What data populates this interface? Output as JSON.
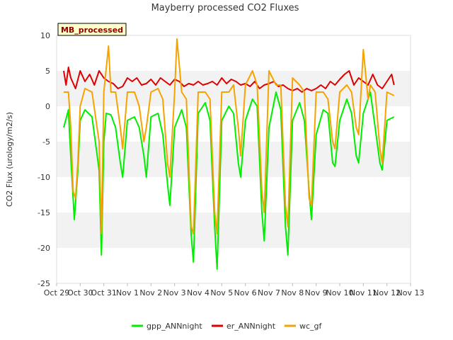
{
  "chart_data": {
    "type": "line",
    "title": "Mayberry processed CO2 Fluxes",
    "badge": "MB_processed",
    "xlabel": "",
    "ylabel": "CO2 Flux (urology/m2/s)",
    "ylim": [
      -25,
      10
    ],
    "yticks": [
      -25,
      -20,
      -15,
      -10,
      -5,
      0,
      5,
      10
    ],
    "xlim": [
      0,
      15
    ],
    "xticks": [
      0,
      1,
      2,
      3,
      4,
      5,
      6,
      7,
      8,
      9,
      10,
      11,
      12,
      13,
      14,
      15
    ],
    "xtick_labels": [
      "Oct 29",
      "Oct 30",
      "Oct 31",
      "Nov 1",
      "Nov 2",
      "Nov 3",
      "Nov 4",
      "Nov 5",
      "Nov 6",
      "Nov 7",
      "Nov 8",
      "Nov 9",
      "Nov 10",
      "Nov 11",
      "Nov 12",
      "Nov 13"
    ],
    "grid": "horizontal-bands",
    "legend_position": "bottom",
    "series": [
      {
        "name": "gpp_ANNnight",
        "color": "#00ee00",
        "x": [
          0.3,
          0.5,
          0.55,
          0.7,
          0.75,
          0.9,
          1.0,
          1.2,
          1.5,
          1.8,
          1.9,
          2.0,
          2.1,
          2.3,
          2.5,
          2.7,
          2.8,
          3.0,
          3.3,
          3.5,
          3.7,
          3.8,
          4.0,
          4.3,
          4.5,
          4.7,
          4.8,
          5.0,
          5.3,
          5.5,
          5.7,
          5.8,
          6.0,
          6.3,
          6.5,
          6.7,
          6.8,
          7.0,
          7.3,
          7.5,
          7.7,
          7.8,
          8.0,
          8.3,
          8.5,
          8.7,
          8.8,
          9.0,
          9.3,
          9.5,
          9.7,
          9.8,
          10.0,
          10.3,
          10.5,
          10.7,
          10.8,
          11.0,
          11.3,
          11.5,
          11.7,
          11.8,
          12.0,
          12.3,
          12.5,
          12.7,
          12.8,
          13.0,
          13.3,
          13.5,
          13.7,
          13.8,
          14.0,
          14.3
        ],
        "values": [
          -3,
          -0.5,
          -4,
          -13,
          -16,
          -9,
          -2,
          -0.5,
          -1.5,
          -9,
          -21,
          -5,
          -1,
          -1.2,
          -3,
          -8,
          -10,
          -2,
          -1.5,
          -3,
          -7,
          -10,
          -1.5,
          -1,
          -4,
          -11,
          -14,
          -3,
          -0.5,
          -3,
          -18,
          -22,
          -1,
          0.5,
          -2,
          -17,
          -23,
          -2,
          0,
          -1,
          -8,
          -10,
          -2,
          1,
          0,
          -15,
          -19,
          -3,
          2,
          -0.5,
          -17,
          -21,
          -2,
          0.5,
          -2,
          -12,
          -16,
          -4,
          -0.5,
          -1,
          -8,
          -8.5,
          -2,
          1,
          -1,
          -7,
          -8,
          -1,
          2,
          -3,
          -8,
          -9,
          -2,
          -1.5
        ]
      },
      {
        "name": "er_ANNnight",
        "color": "#dd0000",
        "x": [
          0.3,
          0.4,
          0.5,
          0.6,
          0.8,
          1.0,
          1.2,
          1.4,
          1.6,
          1.8,
          2.0,
          2.2,
          2.4,
          2.6,
          2.8,
          3.0,
          3.2,
          3.4,
          3.6,
          3.8,
          4.0,
          4.2,
          4.4,
          4.6,
          4.8,
          5.0,
          5.2,
          5.4,
          5.6,
          5.8,
          6.0,
          6.2,
          6.4,
          6.6,
          6.8,
          7.0,
          7.2,
          7.4,
          7.6,
          7.8,
          8.0,
          8.2,
          8.4,
          8.6,
          8.8,
          9.0,
          9.2,
          9.4,
          9.6,
          9.8,
          10.0,
          10.2,
          10.4,
          10.6,
          10.8,
          11.0,
          11.2,
          11.4,
          11.6,
          11.8,
          12.0,
          12.2,
          12.4,
          12.6,
          12.8,
          13.0,
          13.2,
          13.4,
          13.6,
          13.8,
          14.0,
          14.2,
          14.3
        ],
        "values": [
          5,
          3,
          5.5,
          4,
          2.5,
          5,
          3.5,
          4.5,
          3,
          5,
          4,
          3.5,
          3.2,
          2.5,
          2.8,
          4,
          3.5,
          4,
          3,
          3.2,
          3.8,
          3,
          4,
          3.5,
          3,
          3.8,
          3.5,
          2.8,
          3.2,
          3,
          3.5,
          3,
          3.2,
          3.5,
          3,
          4,
          3.2,
          3.8,
          3.5,
          3,
          3.2,
          2.8,
          3.5,
          2.5,
          3,
          3.2,
          3.5,
          2.8,
          3,
          2.5,
          2.2,
          2.5,
          2,
          2.5,
          2.2,
          2.5,
          3,
          2.5,
          3.5,
          3,
          3.8,
          4.5,
          5,
          3,
          4,
          3.5,
          3,
          4.5,
          3,
          2.5,
          3.5,
          4.5,
          3
        ]
      },
      {
        "name": "wc_gf",
        "color": "#f5a300",
        "x": [
          0.3,
          0.5,
          0.6,
          0.7,
          0.8,
          0.9,
          1.0,
          1.2,
          1.5,
          1.8,
          1.9,
          2.0,
          2.2,
          2.3,
          2.5,
          2.7,
          2.8,
          3.0,
          3.3,
          3.5,
          3.7,
          3.8,
          4.0,
          4.3,
          4.5,
          4.7,
          4.8,
          5.0,
          5.1,
          5.3,
          5.5,
          5.7,
          5.8,
          6.0,
          6.3,
          6.5,
          6.7,
          6.8,
          7.0,
          7.3,
          7.5,
          7.7,
          7.8,
          8.0,
          8.3,
          8.5,
          8.7,
          8.8,
          9.0,
          9.3,
          9.5,
          9.7,
          9.8,
          10.0,
          10.3,
          10.5,
          10.7,
          10.8,
          11.0,
          11.3,
          11.5,
          11.7,
          11.8,
          12.0,
          12.3,
          12.5,
          12.7,
          12.8,
          13.0,
          13.2,
          13.3,
          13.5,
          13.7,
          13.8,
          14.0,
          14.3
        ],
        "values": [
          2,
          2,
          -3,
          -12,
          -13,
          -8,
          0,
          2.5,
          2,
          -5,
          -18,
          2,
          8.5,
          2,
          2,
          -3,
          -6,
          2,
          2,
          0,
          -5,
          -3,
          2,
          2.5,
          1,
          -8,
          -10,
          2,
          9.5,
          2,
          1,
          -17,
          -18,
          2,
          2,
          1,
          -15,
          -18,
          2,
          2,
          3,
          -3,
          -7,
          3,
          5,
          3,
          -12,
          -15,
          5,
          3,
          3,
          -14,
          -17,
          4,
          3,
          2,
          -13,
          -14,
          2,
          2,
          1,
          -5,
          -6,
          2,
          3,
          2,
          -3,
          -4,
          8,
          1,
          3,
          2,
          -6,
          -8,
          2,
          1.5
        ]
      }
    ]
  }
}
